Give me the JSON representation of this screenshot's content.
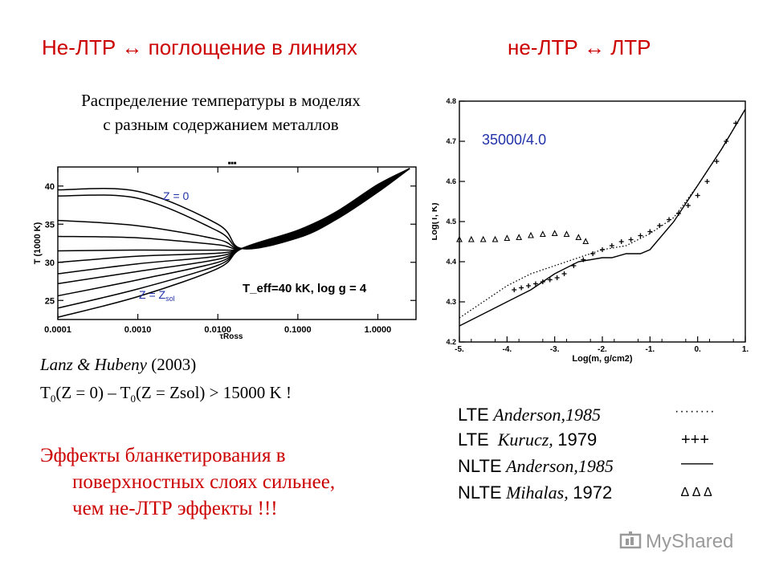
{
  "titles": {
    "left": "Не-ЛТР ↔ поглощение в линиях",
    "right": "не-ЛТР ↔ ЛТР"
  },
  "subtitle": {
    "line1": "Распределение температуры в моделях",
    "line2": "с разным содержанием металлов"
  },
  "reference": {
    "authors": "Lanz & Hubeny",
    "year": "(2003)"
  },
  "formula": {
    "p1": "T",
    "s1": "0",
    "p2": "(Z = 0) – T",
    "s2": "0",
    "p3": "(Z = Zsol) > 15000 K !"
  },
  "effects": {
    "line1": "Эффекты бланкетирования в",
    "line2": "поверхностных слоях сильнее,",
    "line3": "чем не-ЛТР эффекты !!!"
  },
  "colors": {
    "red": "#cc0000",
    "blue": "#2233aa",
    "logo": "#9a9a9a"
  },
  "chart_data": [
    {
      "type": "line",
      "xlabel": "τRoss",
      "ylabel": "T (1000 K)",
      "x_scale": "log",
      "xlim": [
        0.0001,
        3.0
      ],
      "ylim": [
        22.5,
        42.5
      ],
      "xticks": [
        "0.0001",
        "0.0010",
        "0.0100",
        "0.1000",
        "1.0000"
      ],
      "yticks": [
        "25",
        "30",
        "35",
        "40"
      ],
      "inner_label": "T_eff=40 kK, log g = 4",
      "annotations": {
        "top": "Z = 0",
        "bottom_main": "Z = Z",
        "bottom_sub": "sol"
      },
      "x": [
        0.0001,
        0.001,
        0.01,
        0.02,
        0.1,
        0.3,
        1.0,
        2.5
      ],
      "series": [
        {
          "values": [
            39.5,
            39.3,
            35.0,
            31.8,
            33.2,
            35.6,
            39.2,
            42.3
          ]
        },
        {
          "values": [
            38.7,
            38.4,
            34.1,
            31.8,
            33.3,
            35.7,
            39.3,
            42.3
          ]
        },
        {
          "values": [
            35.5,
            34.8,
            33.0,
            31.8,
            33.4,
            35.8,
            39.4,
            42.3
          ]
        },
        {
          "values": [
            33.4,
            33.2,
            32.3,
            31.8,
            33.5,
            35.9,
            39.5,
            42.3
          ]
        },
        {
          "values": [
            31.5,
            31.6,
            31.6,
            31.8,
            33.6,
            36.0,
            39.6,
            42.3
          ]
        },
        {
          "values": [
            30.0,
            30.8,
            31.2,
            31.8,
            33.7,
            36.1,
            39.7,
            42.3
          ]
        },
        {
          "values": [
            28.5,
            29.8,
            30.8,
            31.8,
            33.8,
            36.2,
            39.8,
            42.3
          ]
        },
        {
          "values": [
            27.2,
            28.8,
            30.4,
            31.8,
            33.9,
            36.3,
            39.9,
            42.3
          ]
        },
        {
          "values": [
            25.6,
            27.7,
            30.0,
            31.8,
            34.0,
            36.4,
            40.0,
            42.3
          ]
        },
        {
          "values": [
            24.0,
            26.5,
            29.6,
            31.8,
            34.1,
            36.5,
            40.1,
            42.3
          ]
        },
        {
          "values": [
            22.8,
            25.5,
            29.2,
            31.8,
            34.2,
            36.6,
            40.2,
            42.3
          ]
        }
      ]
    },
    {
      "type": "line",
      "xlabel": "Log(m, g/cm2)",
      "ylabel": "Log(T, K)",
      "xlim": [
        -5.0,
        1.0
      ],
      "ylim": [
        4.2,
        4.8
      ],
      "xticks": [
        "-5.",
        "-4.",
        "-3.",
        "-2.",
        "-1.",
        "0.",
        "1."
      ],
      "yticks": [
        "4.2",
        "4.3",
        "4.4",
        "4.5",
        "4.6",
        "4.7",
        "4.8"
      ],
      "annotation": "35000/4.0",
      "series": [
        {
          "name": "NLTE Anderson,1985",
          "style": "solid",
          "x": [
            -5.0,
            -4.5,
            -4.0,
            -3.5,
            -3.0,
            -2.5,
            -2.0,
            -1.8,
            -1.5,
            -1.2,
            -1.0,
            -0.5,
            0.0,
            0.5,
            1.0
          ],
          "y": [
            4.24,
            4.27,
            4.3,
            4.33,
            4.37,
            4.4,
            4.41,
            4.41,
            4.42,
            4.42,
            4.43,
            4.5,
            4.59,
            4.68,
            4.78
          ]
        },
        {
          "name": "LTE Anderson,1985",
          "style": "dotted",
          "x": [
            -5.0,
            -4.5,
            -4.0,
            -3.5,
            -3.0,
            -2.5,
            -2.0,
            -1.5,
            -1.0,
            -0.5,
            0.0,
            0.5,
            1.0
          ],
          "y": [
            4.26,
            4.3,
            4.34,
            4.37,
            4.39,
            4.41,
            4.43,
            4.44,
            4.47,
            4.51,
            4.59,
            4.68,
            4.78
          ]
        },
        {
          "name": "LTE Kurucz, 1979",
          "style": "plus",
          "x": [
            -3.85,
            -3.7,
            -3.55,
            -3.4,
            -3.25,
            -3.1,
            -2.95,
            -2.8,
            -2.6,
            -2.4,
            -2.2,
            -2.0,
            -1.8,
            -1.6,
            -1.4,
            -1.2,
            -1.0,
            -0.8,
            -0.6,
            -0.4,
            -0.2,
            0.0,
            0.2,
            0.4,
            0.6,
            0.8
          ],
          "y": [
            4.33,
            4.335,
            4.34,
            4.345,
            4.35,
            4.355,
            4.36,
            4.37,
            4.39,
            4.405,
            4.42,
            4.43,
            4.44,
            4.45,
            4.455,
            4.465,
            4.475,
            4.49,
            4.505,
            4.52,
            4.54,
            4.565,
            4.6,
            4.65,
            4.7,
            4.745
          ]
        },
        {
          "name": "NLTE Mihalas, 1972",
          "style": "triangle",
          "x": [
            -5.0,
            -4.75,
            -4.5,
            -4.25,
            -4.0,
            -3.75,
            -3.5,
            -3.25,
            -3.0,
            -2.75,
            -2.5,
            -2.35
          ],
          "y": [
            4.455,
            4.455,
            4.455,
            4.455,
            4.458,
            4.46,
            4.465,
            4.468,
            4.47,
            4.468,
            4.46,
            4.45
          ]
        }
      ]
    }
  ],
  "legend": [
    {
      "tag": "LTE",
      "ref": "Anderson,1985",
      "year": "",
      "symbol": "········"
    },
    {
      "tag": "LTE",
      "ref": "Kurucz,",
      "year": "1979",
      "symbol": "+++"
    },
    {
      "tag": "NLTE",
      "ref": "Anderson,1985",
      "year": "",
      "symbol": "——"
    },
    {
      "tag": "NLTE",
      "ref": "Mihalas,",
      "year": "1972",
      "symbol": "∆ ∆ ∆"
    }
  ],
  "logo": {
    "text": "MyShared"
  }
}
